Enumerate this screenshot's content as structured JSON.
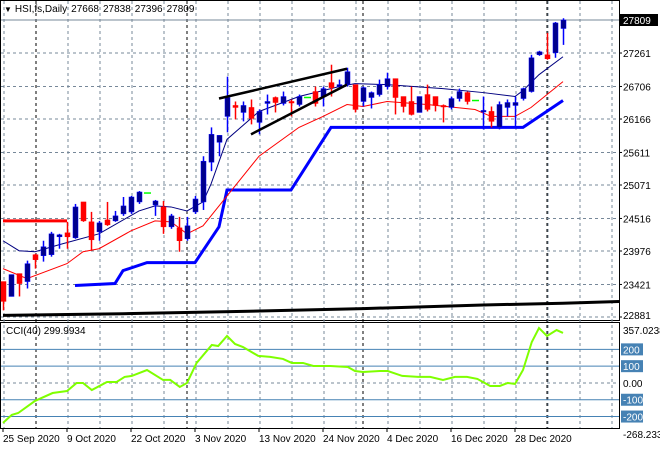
{
  "header": {
    "symbol": "HSI,fs,Daily",
    "open": "27668",
    "high": "27838",
    "low": "27396",
    "close": "27809",
    "menu_icon": "triangle-down-icon"
  },
  "indicator_header": {
    "name": "CCI(40)",
    "value": "299.9934"
  },
  "colors": {
    "bull": "#00008b",
    "bull_wick": "#0000ff",
    "bear": "#ff0000",
    "doji": "#00ff00",
    "ma_fast": "#000080",
    "ma_slow": "#ff0000",
    "support": "#0000ff",
    "long_ma": "#000000",
    "cci": "#7fff00",
    "cci_levels": "#4682b4",
    "grid": "#778899"
  },
  "chart_data": [
    {
      "type": "candlestick",
      "title": "HSI,fs,Daily",
      "y_ticks": [
        "27809",
        "27261",
        "26706",
        "26166",
        "25611",
        "25071",
        "24516",
        "23976",
        "23421",
        "22881"
      ],
      "ylim": [
        22881,
        27809
      ],
      "current_price": "27809",
      "x_labels": [
        "25 Sep 2020",
        "9 Oct 2020",
        "22 Oct 2020",
        "3 Nov 2020",
        "13 Nov 2020",
        "24 Nov 2020",
        "4 Dec 2020",
        "16 Dec 2020",
        "28 Dec 2020"
      ],
      "x_label_bar_index": [
        0,
        8,
        16,
        24,
        32,
        40,
        48,
        56,
        64
      ],
      "ohlc": [
        [
          23469,
          23469,
          22991,
          23140
        ],
        [
          23222,
          23585,
          23222,
          23585
        ],
        [
          23601,
          23601,
          23222,
          23436
        ],
        [
          23469,
          23816,
          23354,
          23766
        ],
        [
          23915,
          23930,
          23684,
          23832
        ],
        [
          23898,
          24146,
          23800,
          24047
        ],
        [
          23915,
          24294,
          23882,
          24261
        ],
        [
          24212,
          24261,
          24014,
          24245
        ],
        [
          24278,
          24460,
          24014,
          24212
        ],
        [
          24195,
          24757,
          24179,
          24707
        ],
        [
          24790,
          24790,
          24460,
          24476
        ],
        [
          24460,
          24625,
          23981,
          24162
        ],
        [
          24294,
          24476,
          24146,
          24443
        ],
        [
          24492,
          24790,
          24393,
          24410
        ],
        [
          24476,
          24641,
          24460,
          24559
        ],
        [
          24592,
          24872,
          24559,
          24724
        ],
        [
          24624,
          24889,
          24592,
          24872
        ],
        [
          24790,
          24971,
          24757,
          24955
        ],
        [
          24938,
          24938,
          24938,
          24938
        ],
        [
          24740,
          24823,
          24559,
          24806
        ],
        [
          24707,
          24806,
          24261,
          24377
        ],
        [
          24377,
          24592,
          24344,
          24559
        ],
        [
          24360,
          24542,
          23964,
          24146
        ],
        [
          24179,
          24542,
          24146,
          24394
        ],
        [
          24625,
          24889,
          24592,
          24839
        ],
        [
          24790,
          25548,
          24657,
          25466
        ],
        [
          25450,
          26027,
          25301,
          25912
        ],
        [
          25780,
          25895,
          25548,
          25895
        ],
        [
          26209,
          26869,
          25945,
          26523
        ],
        [
          26391,
          26457,
          26160,
          26358
        ],
        [
          26275,
          26457,
          26127,
          26391
        ],
        [
          26358,
          26490,
          26077,
          26176
        ],
        [
          26110,
          26325,
          25912,
          26292
        ],
        [
          26424,
          26572,
          26242,
          26457
        ],
        [
          26523,
          26539,
          26275,
          26440
        ],
        [
          26424,
          26622,
          26391,
          26539
        ],
        [
          26457,
          26490,
          26209,
          26440
        ],
        [
          26407,
          26572,
          26374,
          26539
        ],
        [
          26523,
          26523,
          26523,
          26523
        ],
        [
          26622,
          26704,
          26374,
          26424
        ],
        [
          26539,
          26704,
          26374,
          26671
        ],
        [
          26770,
          27067,
          26539,
          26687
        ],
        [
          26704,
          26820,
          26655,
          26737
        ],
        [
          26737,
          27017,
          26704,
          26952
        ],
        [
          26737,
          26737,
          26275,
          26325
        ],
        [
          26457,
          26704,
          26374,
          26687
        ],
        [
          26523,
          26622,
          26341,
          26605
        ],
        [
          26572,
          26820,
          26539,
          26737
        ],
        [
          26704,
          26935,
          26655,
          26836
        ],
        [
          26836,
          26836,
          26242,
          26523
        ],
        [
          26539,
          26539,
          26275,
          26374
        ],
        [
          26457,
          26704,
          26225,
          26242
        ],
        [
          26275,
          26539,
          26275,
          26539
        ],
        [
          26572,
          26737,
          26292,
          26325
        ],
        [
          26539,
          26539,
          26292,
          26391
        ],
        [
          26391,
          26407,
          26110,
          26374
        ],
        [
          26358,
          26539,
          26325,
          26506
        ],
        [
          26506,
          26671,
          26457,
          26622
        ],
        [
          26605,
          26622,
          26407,
          26457
        ],
        [
          26473,
          26473,
          26473,
          26473
        ],
        [
          26292,
          26539,
          25994,
          26308
        ],
        [
          26292,
          26374,
          26027,
          26127
        ],
        [
          26027,
          26457,
          25994,
          26407
        ],
        [
          26358,
          26490,
          26209,
          26440
        ],
        [
          26391,
          26539,
          26027,
          26440
        ],
        [
          26506,
          26687,
          26473,
          26671
        ],
        [
          26622,
          27232,
          26605,
          27182
        ],
        [
          27232,
          27298,
          27215,
          27281
        ],
        [
          27232,
          27595,
          27149,
          27166
        ],
        [
          27265,
          27776,
          27182,
          27760
        ],
        [
          27668,
          27838,
          27396,
          27809
        ]
      ],
      "ma_fast": [
        [
          0,
          24146
        ],
        [
          2,
          23981
        ],
        [
          4,
          23964
        ],
        [
          7,
          24080
        ],
        [
          12,
          24261
        ],
        [
          17,
          24641
        ],
        [
          19,
          24724
        ],
        [
          21,
          24707
        ],
        [
          23,
          24641
        ],
        [
          25,
          24790
        ],
        [
          26,
          25087
        ],
        [
          28,
          25829
        ],
        [
          32,
          26291
        ],
        [
          37,
          26539
        ],
        [
          42,
          26704
        ],
        [
          44,
          26753
        ],
        [
          48,
          26737
        ],
        [
          55,
          26671
        ],
        [
          60,
          26605
        ],
        [
          64,
          26539
        ],
        [
          65,
          26638
        ],
        [
          67,
          26902
        ],
        [
          70,
          27199
        ]
      ],
      "ma_slow": [
        [
          0,
          23684
        ],
        [
          3,
          23519
        ],
        [
          8,
          23767
        ],
        [
          10,
          23964
        ],
        [
          12,
          24014
        ],
        [
          16,
          24311
        ],
        [
          19,
          24476
        ],
        [
          21,
          24460
        ],
        [
          23,
          24261
        ],
        [
          25,
          24394
        ],
        [
          27,
          24724
        ],
        [
          32,
          25549
        ],
        [
          37,
          26027
        ],
        [
          40,
          26209
        ],
        [
          43,
          26407
        ],
        [
          45,
          26374
        ],
        [
          48,
          26456
        ],
        [
          53,
          26407
        ],
        [
          59,
          26324
        ],
        [
          61,
          26209
        ],
        [
          64,
          26209
        ],
        [
          66,
          26357
        ],
        [
          70,
          26786
        ]
      ],
      "support_line": [
        [
          9,
          23404
        ],
        [
          14,
          23436
        ],
        [
          15,
          23651
        ],
        [
          18,
          23783
        ],
        [
          24,
          23783
        ],
        [
          27,
          24377
        ],
        [
          28,
          24988
        ],
        [
          36,
          24988
        ],
        [
          41,
          26027
        ],
        [
          65,
          26027
        ],
        [
          70,
          26473
        ]
      ],
      "long_ma": [
        [
          0,
          22908
        ],
        [
          15,
          22935
        ],
        [
          30,
          22975
        ],
        [
          45,
          23020
        ],
        [
          60,
          23080
        ],
        [
          70,
          23110
        ],
        [
          77,
          23139
        ]
      ],
      "horizontal_level": {
        "price": 24476,
        "from_bar": 0,
        "to_bar": 8
      },
      "trendlines": [
        [
          [
            27,
            26506
          ],
          [
            43,
            27000
          ]
        ],
        [
          [
            31,
            25912
          ],
          [
            43,
            26737
          ]
        ]
      ]
    },
    {
      "type": "line",
      "title": "CCI(40)",
      "ylim": [
        -268.233,
        357.0238
      ],
      "y_labels": [
        "357.0238",
        "200",
        "100",
        "0.00",
        "-100",
        "-200",
        "-268.233"
      ],
      "levels": [
        200,
        100,
        -100,
        -200
      ],
      "last_value": 299.9934,
      "series": [
        [
          0,
          -238
        ],
        [
          1.1,
          -190
        ],
        [
          1.9,
          -179
        ],
        [
          4,
          -107
        ],
        [
          6.2,
          -60
        ],
        [
          8,
          -48
        ],
        [
          9.2,
          0
        ],
        [
          10,
          0
        ],
        [
          11.1,
          -42
        ],
        [
          13,
          6
        ],
        [
          14.2,
          6
        ],
        [
          15.2,
          36
        ],
        [
          16.1,
          42
        ],
        [
          18,
          77
        ],
        [
          20,
          18
        ],
        [
          20.9,
          18
        ],
        [
          22.1,
          -24
        ],
        [
          23,
          0
        ],
        [
          24.2,
          119
        ],
        [
          26.1,
          226
        ],
        [
          26.9,
          220
        ],
        [
          28,
          280
        ],
        [
          29,
          232
        ],
        [
          30,
          214
        ],
        [
          31.9,
          161
        ],
        [
          33.4,
          155
        ],
        [
          35,
          143
        ],
        [
          36.1,
          119
        ],
        [
          37.5,
          119
        ],
        [
          38.8,
          101
        ],
        [
          40.9,
          101
        ],
        [
          43.1,
          95
        ],
        [
          44,
          71
        ],
        [
          45,
          65
        ],
        [
          47.1,
          71
        ],
        [
          48.1,
          71
        ],
        [
          49.9,
          42
        ],
        [
          51.9,
          36
        ],
        [
          53.4,
          36
        ],
        [
          55,
          18
        ],
        [
          56.5,
          36
        ],
        [
          58,
          36
        ],
        [
          59.3,
          24
        ],
        [
          60.9,
          -18
        ],
        [
          62.1,
          -18
        ],
        [
          63.1,
          0
        ],
        [
          64,
          -6
        ],
        [
          65,
          77
        ],
        [
          66.1,
          244
        ],
        [
          67,
          327
        ],
        [
          68,
          280
        ],
        [
          69.2,
          315
        ],
        [
          70,
          298
        ]
      ]
    }
  ]
}
